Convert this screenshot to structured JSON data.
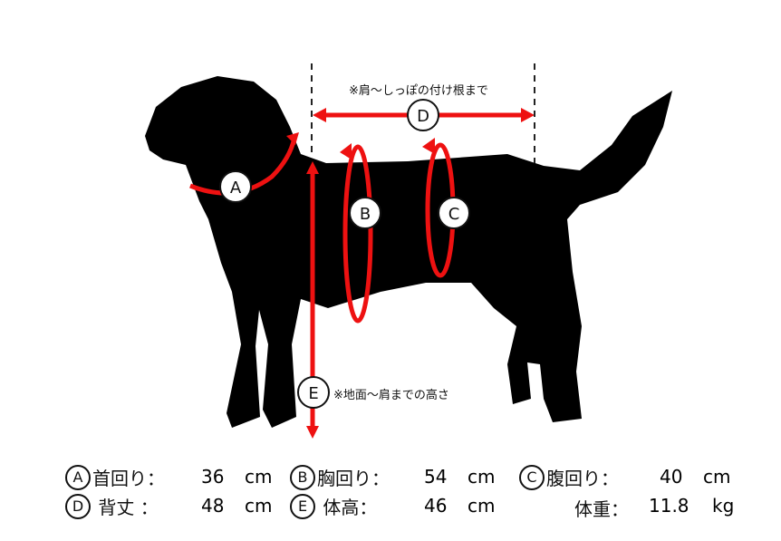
{
  "notes": {
    "back_length": "※肩～しっぽの付け根まで",
    "height": "※地面～肩までの高さ"
  },
  "markers": {
    "a": "A",
    "b": "B",
    "c": "C",
    "d": "D",
    "e": "E"
  },
  "colors": {
    "arrow": "#ee1111",
    "silhouette": "#000000"
  },
  "measurements": [
    {
      "key": "A",
      "label": "首回り：",
      "value": "36",
      "unit": "cm"
    },
    {
      "key": "B",
      "label": "胸回り：",
      "value": "54",
      "unit": "cm"
    },
    {
      "key": "C",
      "label": "腹回り：",
      "value": "40",
      "unit": "cm"
    },
    {
      "key": "D",
      "label": "背丈 ：",
      "value": "48",
      "unit": "cm"
    },
    {
      "key": "E",
      "label": "体高：",
      "value": "46",
      "unit": "cm"
    },
    {
      "key": "",
      "label": "体重：",
      "value": "11.8",
      "unit": "kg"
    }
  ]
}
